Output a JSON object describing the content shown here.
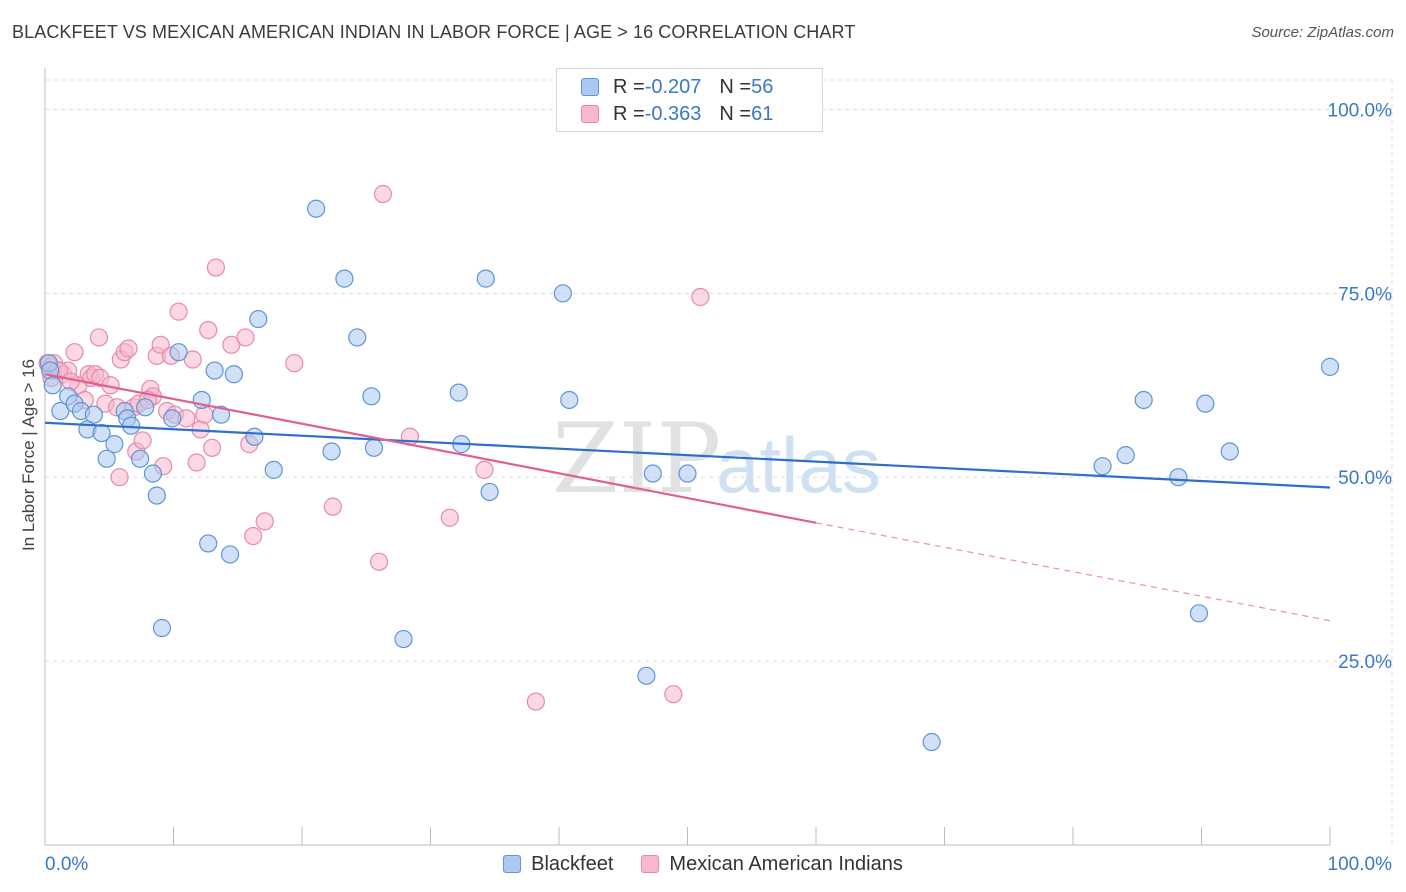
{
  "header": {
    "title": "BLACKFEET VS MEXICAN AMERICAN INDIAN IN LABOR FORCE | AGE > 16 CORRELATION CHART",
    "source": "Source: ZipAtlas.com"
  },
  "watermark": {
    "zip": "ZIP",
    "atlas": "atlas"
  },
  "colors": {
    "blackfeet_fill": "#aac8f0",
    "blackfeet_stroke": "#5f95d6",
    "blackfeet_line": "#2f6fca",
    "mexican_fill": "#f7b8cd",
    "mexican_stroke": "#e78aaa",
    "mexican_line": "#e0608f",
    "value_text": "#3a78c6",
    "grid": "#dedede"
  },
  "legend_stats": [
    {
      "r_label": "R = ",
      "r_value": "-0.207",
      "n_label": "N = ",
      "n_value": "56"
    },
    {
      "r_label": "R = ",
      "r_value": "-0.363",
      "n_label": "N = ",
      "n_value": "61"
    }
  ],
  "chart_data": {
    "type": "scatter",
    "title": "BLACKFEET VS MEXICAN AMERICAN INDIAN IN LABOR FORCE | AGE > 16 CORRELATION CHART",
    "xlabel": "",
    "ylabel": "In Labor Force | Age > 16",
    "xlim": [
      0,
      100
    ],
    "ylim": [
      0,
      104
    ],
    "x_tick_labels": [
      "0.0%",
      "100.0%"
    ],
    "y_ticks": [
      {
        "value": 25,
        "label": "25.0%"
      },
      {
        "value": 50,
        "label": "50.0%"
      },
      {
        "value": 75,
        "label": "75.0%"
      },
      {
        "value": 100,
        "label": "100.0%"
      }
    ],
    "grid": true,
    "legend_position": "bottom-center",
    "series": [
      {
        "name": "Blackfeet",
        "trend": {
          "x": [
            0,
            100
          ],
          "y": [
            57.4,
            48.6
          ],
          "dashed_to": null
        },
        "points": [
          [
            0.3,
            65.5
          ],
          [
            0.4,
            64.5
          ],
          [
            0.6,
            62.5
          ],
          [
            1.2,
            59.0
          ],
          [
            1.8,
            61.0
          ],
          [
            2.3,
            60.0
          ],
          [
            2.8,
            59.0
          ],
          [
            3.3,
            56.5
          ],
          [
            3.8,
            58.5
          ],
          [
            4.4,
            56.0
          ],
          [
            4.8,
            52.5
          ],
          [
            5.4,
            54.5
          ],
          [
            6.2,
            59.0
          ],
          [
            6.4,
            58.0
          ],
          [
            6.7,
            57.0
          ],
          [
            7.4,
            52.5
          ],
          [
            7.8,
            59.5
          ],
          [
            8.4,
            50.5
          ],
          [
            8.7,
            47.5
          ],
          [
            9.1,
            29.5
          ],
          [
            9.9,
            58.0
          ],
          [
            10.4,
            67.0
          ],
          [
            12.2,
            60.5
          ],
          [
            12.7,
            41.0
          ],
          [
            13.2,
            64.5
          ],
          [
            13.7,
            58.5
          ],
          [
            14.4,
            39.5
          ],
          [
            14.7,
            64.0
          ],
          [
            16.6,
            71.5
          ],
          [
            16.3,
            55.5
          ],
          [
            17.8,
            51.0
          ],
          [
            21.1,
            86.5
          ],
          [
            22.3,
            53.5
          ],
          [
            23.3,
            77.0
          ],
          [
            24.3,
            69.0
          ],
          [
            25.4,
            61.0
          ],
          [
            25.6,
            54.0
          ],
          [
            27.9,
            28.0
          ],
          [
            32.2,
            61.5
          ],
          [
            32.4,
            54.5
          ],
          [
            34.3,
            77.0
          ],
          [
            34.6,
            48.0
          ],
          [
            40.3,
            75.0
          ],
          [
            40.8,
            60.5
          ],
          [
            46.8,
            23.0
          ],
          [
            47.3,
            50.5
          ],
          [
            50.0,
            50.5
          ],
          [
            69.0,
            14.0
          ],
          [
            82.3,
            51.5
          ],
          [
            84.1,
            53.0
          ],
          [
            85.5,
            60.5
          ],
          [
            88.2,
            50.0
          ],
          [
            89.8,
            31.5
          ],
          [
            90.3,
            60.0
          ],
          [
            92.2,
            53.5
          ],
          [
            100.0,
            65.0
          ]
        ]
      },
      {
        "name": "Mexican American Indians",
        "trend": {
          "x": [
            0,
            60
          ],
          "y": [
            64.0,
            43.8
          ],
          "dashed_to": {
            "x": 100,
            "y": 30.5
          }
        },
        "points": [
          [
            0.2,
            65.5
          ],
          [
            0.4,
            65.0
          ],
          [
            0.7,
            65.5
          ],
          [
            0.9,
            64.5
          ],
          [
            1.4,
            64.0
          ],
          [
            1.8,
            64.5
          ],
          [
            2.3,
            67.0
          ],
          [
            2.6,
            62.5
          ],
          [
            3.1,
            60.5
          ],
          [
            3.4,
            64.0
          ],
          [
            3.6,
            63.5
          ],
          [
            3.9,
            64.0
          ],
          [
            4.2,
            69.0
          ],
          [
            4.3,
            63.5
          ],
          [
            4.7,
            60.0
          ],
          [
            5.1,
            62.5
          ],
          [
            5.6,
            59.5
          ],
          [
            5.8,
            50.0
          ],
          [
            5.9,
            66.0
          ],
          [
            6.2,
            67.0
          ],
          [
            6.5,
            67.5
          ],
          [
            6.9,
            59.5
          ],
          [
            7.1,
            53.5
          ],
          [
            7.3,
            60.0
          ],
          [
            7.6,
            55.0
          ],
          [
            8.2,
            62.0
          ],
          [
            8.4,
            61.0
          ],
          [
            8.7,
            66.5
          ],
          [
            9.0,
            68.0
          ],
          [
            9.2,
            51.5
          ],
          [
            9.5,
            59.0
          ],
          [
            9.8,
            66.5
          ],
          [
            10.1,
            58.5
          ],
          [
            10.4,
            72.5
          ],
          [
            11.5,
            66.0
          ],
          [
            11.8,
            52.0
          ],
          [
            12.1,
            56.5
          ],
          [
            12.4,
            58.5
          ],
          [
            12.7,
            70.0
          ],
          [
            13.0,
            54.0
          ],
          [
            13.3,
            78.5
          ],
          [
            14.5,
            68.0
          ],
          [
            15.6,
            69.0
          ],
          [
            15.9,
            54.5
          ],
          [
            16.2,
            42.0
          ],
          [
            17.1,
            44.0
          ],
          [
            19.4,
            65.5
          ],
          [
            22.4,
            46.0
          ],
          [
            26.0,
            38.5
          ],
          [
            26.3,
            88.5
          ],
          [
            28.4,
            55.5
          ],
          [
            31.5,
            44.5
          ],
          [
            34.2,
            51.0
          ],
          [
            38.2,
            19.5
          ],
          [
            48.9,
            20.5
          ],
          [
            51.0,
            74.5
          ],
          [
            0.5,
            63.5
          ],
          [
            1.1,
            64.5
          ],
          [
            2.0,
            63.0
          ],
          [
            8.0,
            60.5
          ],
          [
            11.0,
            58.0
          ]
        ]
      }
    ]
  }
}
